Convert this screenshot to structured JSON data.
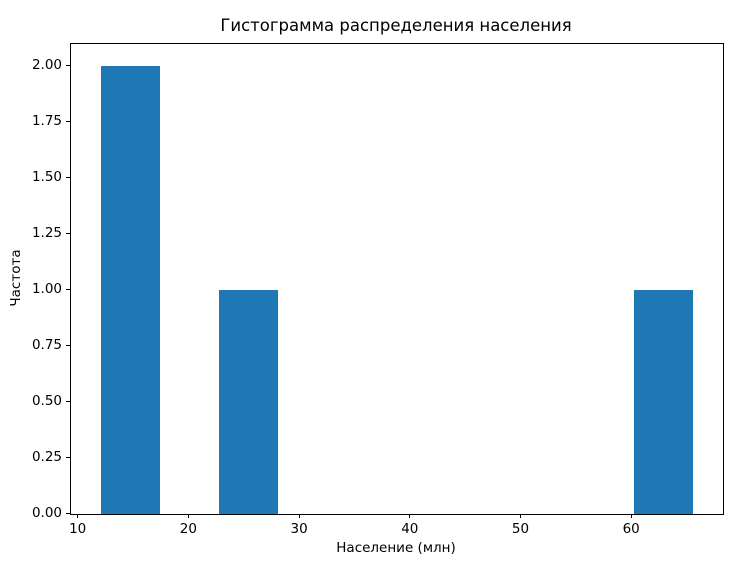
{
  "chart_data": {
    "type": "histogram",
    "title": "Гистограмма распределения населения",
    "xlabel": "Население (млн)",
    "ylabel": "Частота",
    "bar_color": "#1f77b4",
    "background_color": "#ffffff",
    "axis_color": "#000000",
    "grid": false,
    "legend_position": null,
    "xlim": [
      9.3,
      68.2
    ],
    "ylim": [
      0,
      2.1
    ],
    "xticks": [
      {
        "value": 10,
        "label": "10"
      },
      {
        "value": 20,
        "label": "20"
      },
      {
        "value": 30,
        "label": "30"
      },
      {
        "value": 40,
        "label": "40"
      },
      {
        "value": 50,
        "label": "50"
      },
      {
        "value": 60,
        "label": "60"
      }
    ],
    "yticks": [
      {
        "value": 0.0,
        "label": "0.00"
      },
      {
        "value": 0.25,
        "label": "0.25"
      },
      {
        "value": 0.5,
        "label": "0.50"
      },
      {
        "value": 0.75,
        "label": "0.75"
      },
      {
        "value": 1.0,
        "label": "1.00"
      },
      {
        "value": 1.25,
        "label": "1.25"
      },
      {
        "value": 1.5,
        "label": "1.50"
      },
      {
        "value": 1.75,
        "label": "1.75"
      },
      {
        "value": 2.0,
        "label": "2.00"
      }
    ],
    "bins": [
      {
        "x0": 12.0,
        "x1": 17.35,
        "count": 2
      },
      {
        "x0": 22.7,
        "x1": 28.05,
        "count": 1
      },
      {
        "x0": 60.15,
        "x1": 65.5,
        "count": 1
      }
    ]
  }
}
